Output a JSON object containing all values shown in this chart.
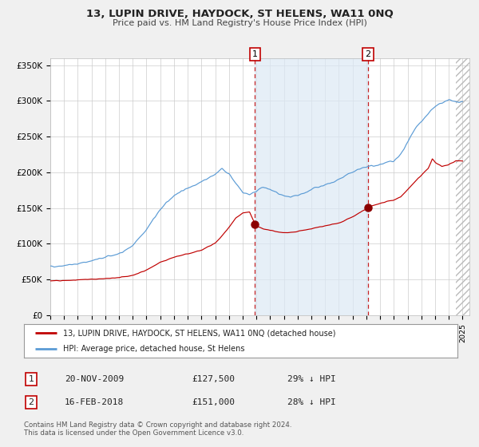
{
  "title": "13, LUPIN DRIVE, HAYDOCK, ST HELENS, WA11 0NQ",
  "subtitle": "Price paid vs. HM Land Registry's House Price Index (HPI)",
  "hpi_color": "#5b9bd5",
  "price_color": "#c00000",
  "marker_color": "#8b0000",
  "background_color": "#f0f0f0",
  "plot_bg_color": "#ffffff",
  "shade_color": "#dce9f5",
  "ylim": [
    0,
    360000
  ],
  "ytick_values": [
    0,
    50000,
    100000,
    150000,
    200000,
    250000,
    300000,
    350000
  ],
  "ytick_labels": [
    "£0",
    "£50K",
    "£100K",
    "£150K",
    "£200K",
    "£250K",
    "£300K",
    "£350K"
  ],
  "xlim_start": 1995.0,
  "xlim_end": 2025.5,
  "sale1_x": 2009.9,
  "sale1_y": 127500,
  "sale1_label": "1",
  "sale1_date": "20-NOV-2009",
  "sale1_price": "£127,500",
  "sale1_pct": "29% ↓ HPI",
  "sale2_x": 2018.13,
  "sale2_y": 151000,
  "sale2_label": "2",
  "sale2_date": "16-FEB-2018",
  "sale2_price": "£151,000",
  "sale2_pct": "28% ↓ HPI",
  "legend_line1": "13, LUPIN DRIVE, HAYDOCK, ST HELENS, WA11 0NQ (detached house)",
  "legend_line2": "HPI: Average price, detached house, St Helens",
  "footer": "Contains HM Land Registry data © Crown copyright and database right 2024.\nThis data is licensed under the Open Government Licence v3.0."
}
